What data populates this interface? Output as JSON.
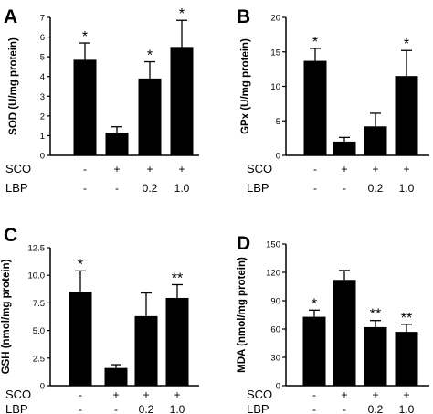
{
  "chart_data": [
    {
      "type": "bar",
      "panel": "A",
      "ylabel": "SOD (U/mg protein)",
      "ylim": [
        0,
        7
      ],
      "yticks": [
        "0",
        "1",
        "2",
        "3",
        "4",
        "5",
        "6",
        "7"
      ],
      "row_labels": [
        "SCO",
        "LBP"
      ],
      "categories": [
        [
          "-",
          "-"
        ],
        [
          "+",
          "-"
        ],
        [
          "+",
          "0.2"
        ],
        [
          "+",
          "1.0"
        ]
      ],
      "values": [
        4.85,
        1.15,
        3.9,
        5.5
      ],
      "errors": [
        0.85,
        0.3,
        0.85,
        1.35
      ],
      "significance": [
        "*",
        "",
        "*",
        "*"
      ]
    },
    {
      "type": "bar",
      "panel": "B",
      "ylabel": "GPx (U/mg protein)",
      "ylim": [
        0,
        20
      ],
      "yticks": [
        "0",
        "5",
        "10",
        "15",
        "20"
      ],
      "row_labels": [
        "SCO",
        "LBP"
      ],
      "categories": [
        [
          "-",
          "-"
        ],
        [
          "+",
          "-"
        ],
        [
          "+",
          "0.2"
        ],
        [
          "+",
          "1.0"
        ]
      ],
      "values": [
        13.7,
        2.0,
        4.2,
        11.5
      ],
      "errors": [
        1.8,
        0.6,
        1.9,
        3.7
      ],
      "significance": [
        "*",
        "",
        "",
        "*"
      ]
    },
    {
      "type": "bar",
      "panel": "C",
      "ylabel": "GSH (nmol/mg protein)",
      "ylim": [
        0,
        12.5
      ],
      "yticks": [
        "0",
        "2.5",
        "5.0",
        "7.5",
        "10.0",
        "12.5"
      ],
      "row_labels": [
        "SCO",
        "LBP"
      ],
      "categories": [
        [
          "-",
          "-"
        ],
        [
          "+",
          "-"
        ],
        [
          "+",
          "0.2"
        ],
        [
          "+",
          "1.0"
        ]
      ],
      "values": [
        8.5,
        1.6,
        6.3,
        7.95
      ],
      "errors": [
        1.9,
        0.3,
        2.1,
        1.2
      ],
      "significance": [
        "*",
        "",
        "",
        "**"
      ]
    },
    {
      "type": "bar",
      "panel": "D",
      "ylabel": "MDA (nmol/mg protein)",
      "ylim": [
        0,
        150
      ],
      "yticks": [
        "0",
        "30",
        "60",
        "90",
        "120",
        "150"
      ],
      "row_labels": [
        "SCO",
        "LBP"
      ],
      "categories": [
        [
          "-",
          "-"
        ],
        [
          "+",
          "-"
        ],
        [
          "+",
          "0.2"
        ],
        [
          "+",
          "1.0"
        ]
      ],
      "values": [
        73,
        112,
        62,
        57
      ],
      "errors": [
        7,
        10,
        7,
        8
      ],
      "significance": [
        "*",
        "",
        "**",
        "**"
      ]
    }
  ]
}
